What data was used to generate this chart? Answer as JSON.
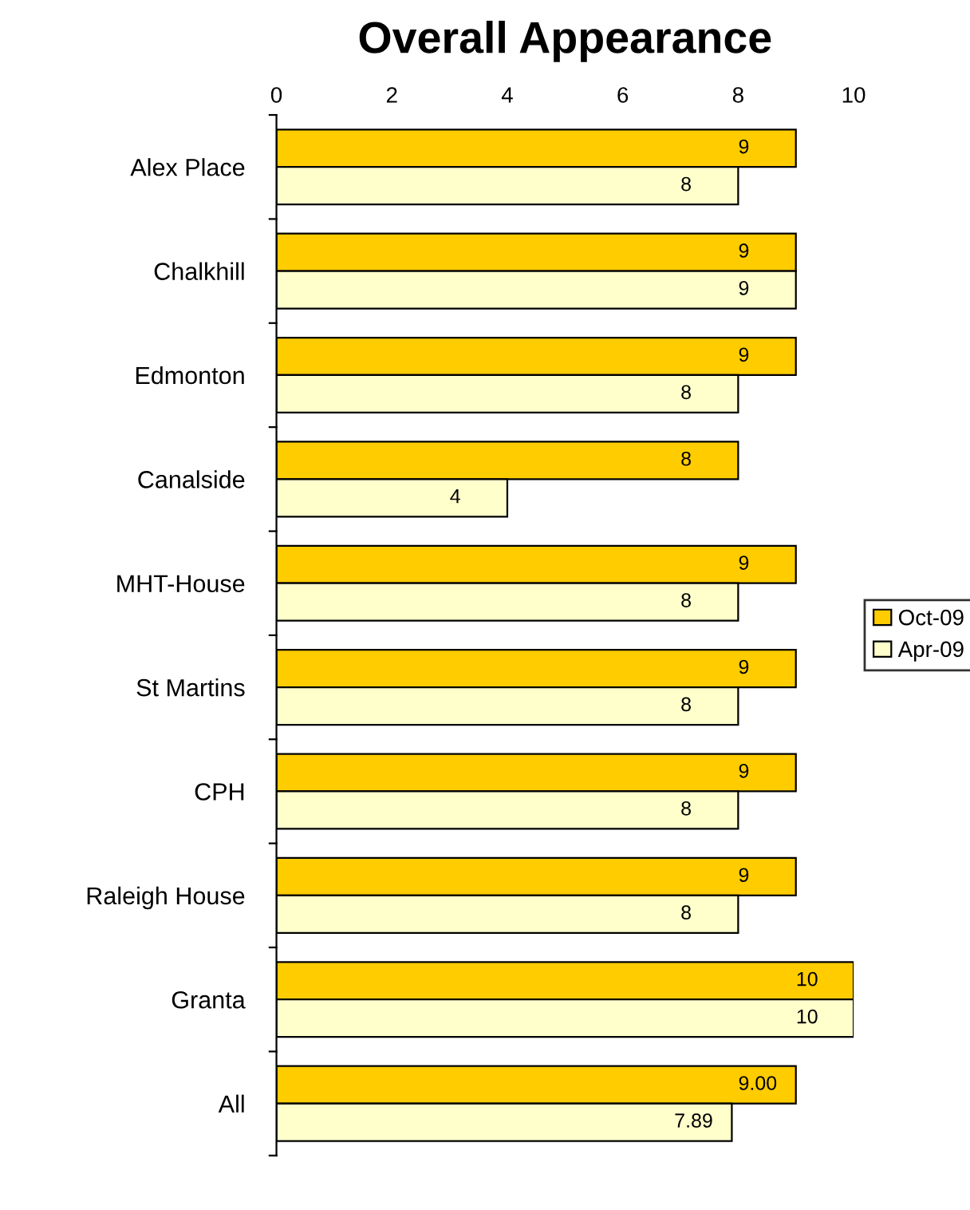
{
  "chart_data": {
    "type": "bar",
    "orientation": "horizontal",
    "title": "Overall Appearance",
    "categories": [
      "Alex Place",
      "Chalkhill",
      "Edmonton",
      "Canalside",
      "MHT-House",
      "St Martins",
      "CPH",
      "Raleigh House",
      "Granta",
      "All"
    ],
    "series": [
      {
        "name": "Oct-09",
        "color": "#ffcc00",
        "values": [
          9,
          9,
          9,
          8,
          9,
          9,
          9,
          9,
          10,
          9.0
        ],
        "value_labels": [
          "9",
          "9",
          "9",
          "8",
          "9",
          "9",
          "9",
          "9",
          "10",
          "9.00"
        ]
      },
      {
        "name": "Apr-09",
        "color": "#ffffcc",
        "values": [
          8,
          9,
          8,
          4,
          8,
          8,
          8,
          8,
          10,
          7.89
        ],
        "value_labels": [
          "8",
          "9",
          "8",
          "4",
          "8",
          "8",
          "8",
          "8",
          "10",
          "7.89"
        ]
      }
    ],
    "xlim": [
      0,
      10
    ],
    "xticks": [
      0,
      2,
      4,
      6,
      8,
      10
    ],
    "grid": false,
    "legend": "right"
  }
}
